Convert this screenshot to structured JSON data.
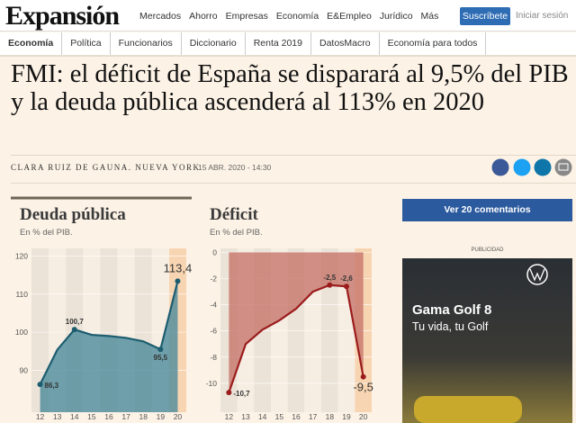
{
  "header": {
    "logo": "Expansión",
    "nav": [
      "Mercados",
      "Ahorro",
      "Empresas",
      "Economía",
      "E&Empleo",
      "Jurídico",
      "Más"
    ],
    "subscribe": "Suscríbete",
    "login": "Iniciar sesión"
  },
  "subnav": [
    "Economía",
    "Política",
    "Funcionarios",
    "Diccionario",
    "Renta 2019",
    "DatosMacro",
    "Economía para todos"
  ],
  "article": {
    "headline": "FMI: el déficit de España se disparará al 9,5% del PIB y la deuda pública ascenderá al 113% en 2020",
    "author": "CLARA RUIZ DE GAUNA. NUEVA YORK",
    "date": "15 ABR. 2020 - 14:30"
  },
  "sidebar": {
    "comments": "Ver 20 comentarios",
    "ad_label": "PUBLICIDAD",
    "ad_title": "Gama Golf 8",
    "ad_subtitle": "Tu vida, tu Golf"
  },
  "chart_data": [
    {
      "type": "area",
      "title": "Deuda pública",
      "subtitle": "En % del PIB.",
      "categories": [
        "12",
        "13",
        "14",
        "15",
        "16",
        "17",
        "18",
        "19",
        "20"
      ],
      "values": [
        86.3,
        95.4,
        100.7,
        99.3,
        99.0,
        98.5,
        97.6,
        95.5,
        113.4
      ],
      "value_labels": [
        "86,3",
        null,
        "100,7",
        null,
        null,
        null,
        null,
        "95,5",
        "113,4"
      ],
      "color": "#1d5d70",
      "fill_color": "#4c8b9b",
      "ylim": [
        79,
        122
      ],
      "yticks": [
        90,
        100,
        110,
        120
      ],
      "grid": true
    },
    {
      "type": "area",
      "title": "Déficit",
      "subtitle": "En % del PIB.",
      "categories": [
        "12",
        "13",
        "14",
        "15",
        "16",
        "17",
        "18",
        "19",
        "20"
      ],
      "values": [
        -10.7,
        -7.0,
        -5.9,
        -5.2,
        -4.3,
        -3.0,
        -2.5,
        -2.6,
        -9.5
      ],
      "value_labels": [
        "-10,7",
        null,
        null,
        null,
        null,
        null,
        "-2,5",
        "-2,6",
        "-9,5"
      ],
      "color": "#9b1c1c",
      "fill_color": "#c7766b",
      "ylim": [
        -12.2,
        0.3
      ],
      "yticks": [
        -10,
        -8,
        -6,
        -4,
        -2,
        0
      ],
      "grid": true
    }
  ]
}
